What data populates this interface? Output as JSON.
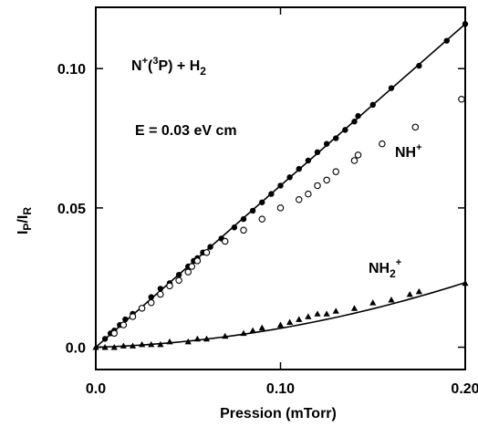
{
  "chart_data": {
    "type": "scatter",
    "xlabel": "Pression (mTorr)",
    "ylabel": "I_P/I_R",
    "xlim": [
      0,
      0.2
    ],
    "ylim": [
      -0.008,
      0.122
    ],
    "x_ticks": [
      0.0,
      0.1,
      0.2
    ],
    "x_tick_labels": [
      "0.0",
      "0.10",
      "0.20"
    ],
    "y_ticks": [
      0.0,
      0.05,
      0.1
    ],
    "y_tick_labels": [
      "0.0",
      "0.05",
      "0.10"
    ],
    "grid": false,
    "annotations": {
      "reaction_prefix": "N",
      "reaction_sup1": "+",
      "reaction_open": "(",
      "reaction_sup2": "3",
      "reaction_mid": "P) + H",
      "reaction_sub": "2",
      "field": "E = 0.03 eV cm",
      "nh_base": "NH",
      "nh_sup": "+",
      "nh2_base": "NH",
      "nh2_sub": "2",
      "nh2_sup": "+"
    },
    "series": [
      {
        "marker": "filled-circle",
        "fit": "linear",
        "fit_line": [
          [
            0,
            0.0
          ],
          [
            0.2,
            0.116
          ]
        ],
        "points": [
          [
            0.005,
            0.003
          ],
          [
            0.008,
            0.005
          ],
          [
            0.01,
            0.006
          ],
          [
            0.013,
            0.008
          ],
          [
            0.016,
            0.01
          ],
          [
            0.02,
            0.012
          ],
          [
            0.025,
            0.014
          ],
          [
            0.03,
            0.018
          ],
          [
            0.035,
            0.021
          ],
          [
            0.04,
            0.023
          ],
          [
            0.045,
            0.026
          ],
          [
            0.05,
            0.029
          ],
          [
            0.053,
            0.031
          ],
          [
            0.055,
            0.032
          ],
          [
            0.058,
            0.034
          ],
          [
            0.062,
            0.036
          ],
          [
            0.068,
            0.039
          ],
          [
            0.075,
            0.043
          ],
          [
            0.08,
            0.046
          ],
          [
            0.085,
            0.049
          ],
          [
            0.09,
            0.052
          ],
          [
            0.095,
            0.055
          ],
          [
            0.1,
            0.058
          ],
          [
            0.105,
            0.061
          ],
          [
            0.11,
            0.064
          ],
          [
            0.115,
            0.067
          ],
          [
            0.12,
            0.07
          ],
          [
            0.125,
            0.073
          ],
          [
            0.13,
            0.075
          ],
          [
            0.135,
            0.078
          ],
          [
            0.14,
            0.081
          ],
          [
            0.142,
            0.083
          ],
          [
            0.15,
            0.087
          ],
          [
            0.16,
            0.093
          ],
          [
            0.175,
            0.101
          ],
          [
            0.19,
            0.11
          ],
          [
            0.2,
            0.116
          ]
        ]
      },
      {
        "marker": "open-circle",
        "points": [
          [
            0.01,
            0.005
          ],
          [
            0.015,
            0.008
          ],
          [
            0.02,
            0.011
          ],
          [
            0.025,
            0.014
          ],
          [
            0.03,
            0.016
          ],
          [
            0.035,
            0.019
          ],
          [
            0.04,
            0.022
          ],
          [
            0.045,
            0.024
          ],
          [
            0.05,
            0.027
          ],
          [
            0.052,
            0.029
          ],
          [
            0.055,
            0.031
          ],
          [
            0.06,
            0.034
          ],
          [
            0.07,
            0.038
          ],
          [
            0.08,
            0.042
          ],
          [
            0.09,
            0.046
          ],
          [
            0.1,
            0.05
          ],
          [
            0.11,
            0.053
          ],
          [
            0.115,
            0.055
          ],
          [
            0.12,
            0.058
          ],
          [
            0.125,
            0.06
          ],
          [
            0.13,
            0.063
          ],
          [
            0.14,
            0.067
          ],
          [
            0.142,
            0.069
          ],
          [
            0.155,
            0.073
          ],
          [
            0.173,
            0.079
          ],
          [
            0.198,
            0.089
          ]
        ]
      },
      {
        "marker": "filled-triangle",
        "fit": "quadratic",
        "fit_coeffs": [
          0.0,
          0.02,
          0.48
        ],
        "points": [
          [
            0.0,
            0.0
          ],
          [
            0.005,
            0.0
          ],
          [
            0.01,
            0.0
          ],
          [
            0.015,
            0.0005
          ],
          [
            0.02,
            0.0005
          ],
          [
            0.025,
            0.001
          ],
          [
            0.03,
            0.001
          ],
          [
            0.035,
            0.001
          ],
          [
            0.04,
            0.002
          ],
          [
            0.05,
            0.002
          ],
          [
            0.055,
            0.003
          ],
          [
            0.06,
            0.003
          ],
          [
            0.07,
            0.004
          ],
          [
            0.08,
            0.005
          ],
          [
            0.085,
            0.006
          ],
          [
            0.09,
            0.007
          ],
          [
            0.1,
            0.008
          ],
          [
            0.105,
            0.009
          ],
          [
            0.11,
            0.01
          ],
          [
            0.115,
            0.011
          ],
          [
            0.12,
            0.012
          ],
          [
            0.125,
            0.012
          ],
          [
            0.13,
            0.013
          ],
          [
            0.14,
            0.014
          ],
          [
            0.15,
            0.016
          ],
          [
            0.16,
            0.017
          ],
          [
            0.17,
            0.019
          ],
          [
            0.175,
            0.02
          ],
          [
            0.2,
            0.023
          ]
        ]
      }
    ]
  }
}
